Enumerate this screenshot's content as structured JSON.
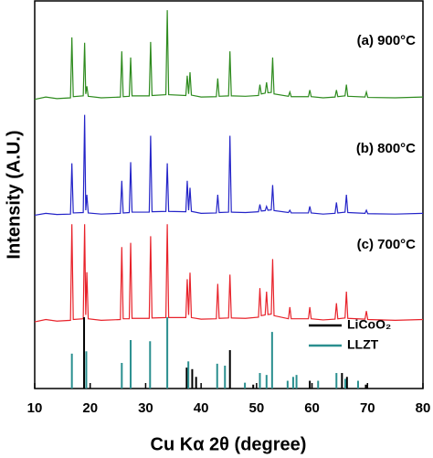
{
  "chart_data": {
    "type": "line",
    "xlabel": "Cu Kα 2θ (degree)",
    "ylabel": "Intensity (A.U.)",
    "xlim": [
      10,
      80
    ],
    "xticks": [
      10,
      20,
      30,
      40,
      50,
      60,
      70,
      80
    ],
    "ylim": [
      0,
      100
    ],
    "x": [
      10,
      12,
      14,
      16.45,
      16.7,
      16.95,
      18.75,
      19.0,
      19.2,
      19.4,
      19.65,
      22,
      25.45,
      25.7,
      25.95,
      27.05,
      27.3,
      27.55,
      30.65,
      30.9,
      31.15,
      33.65,
      33.9,
      34.15,
      37.25,
      37.5,
      37.75,
      38.0,
      38.25,
      40,
      42.75,
      43.0,
      43.25,
      44.95,
      45.2,
      45.45,
      48,
      50.35,
      50.6,
      50.85,
      51.55,
      51.8,
      52.05,
      52.65,
      52.9,
      53.15,
      55.75,
      56.0,
      56.25,
      59.35,
      59.6,
      59.85,
      62,
      64.15,
      64.4,
      64.65,
      65.95,
      66.2,
      66.45,
      69.55,
      69.8,
      70.05,
      75,
      80
    ],
    "series": [
      {
        "name": "(a) 900°C",
        "color": "#2e8b1e",
        "values": [
          74.6,
          75.2,
          74.8,
          75,
          90.6,
          75.3,
          75.5,
          89.2,
          76,
          78,
          75.4,
          75,
          75.2,
          87,
          75.3,
          75.4,
          85.4,
          75.5,
          75.5,
          89.4,
          75.6,
          75.8,
          97.6,
          75.8,
          75.6,
          80.7,
          76,
          81.6,
          75.7,
          75.2,
          75.3,
          80,
          75.4,
          75.5,
          87,
          75.5,
          75.4,
          75.6,
          78.4,
          76,
          76.2,
          79,
          76.3,
          76.4,
          85.4,
          76,
          75.4,
          76.5,
          75.3,
          75.3,
          77,
          75.3,
          75,
          75.2,
          77,
          75.3,
          75.5,
          78.4,
          75.4,
          75.2,
          76.5,
          75.1,
          75,
          75.2
        ]
      },
      {
        "name": "(b) 800°C",
        "color": "#2424c8",
        "values": [
          44.7,
          45.2,
          44.9,
          45,
          58.1,
          45.3,
          45.4,
          70.6,
          46,
          50,
          45.3,
          45,
          45.2,
          53.6,
          45.3,
          45.4,
          58.4,
          45.5,
          45.5,
          65.2,
          45.6,
          45.7,
          58.1,
          45.7,
          45.6,
          53.6,
          46,
          51.8,
          45.7,
          45.2,
          45.3,
          50,
          45.4,
          45.5,
          65.2,
          45.5,
          45.4,
          45.6,
          47.5,
          45.8,
          45.9,
          47,
          46,
          46.1,
          52.5,
          45.9,
          45.4,
          46,
          45.3,
          45.3,
          47,
          45.3,
          45,
          45.2,
          48,
          45.3,
          45.5,
          50,
          45.4,
          45.2,
          46,
          45.1,
          45,
          45.2
        ]
      },
      {
        "name": "(c) 700°C",
        "color": "#e8222a",
        "values": [
          17.2,
          17.8,
          17.4,
          17.6,
          42.4,
          17.8,
          18,
          42.4,
          19,
          30,
          18,
          17.6,
          17.8,
          36.5,
          18,
          18,
          37.6,
          18.1,
          18.1,
          39.3,
          18.2,
          18.3,
          42.4,
          18.3,
          18.3,
          28.2,
          19,
          29.9,
          18.3,
          17.9,
          18,
          27,
          18.1,
          18.2,
          29.4,
          18.2,
          18.1,
          18.4,
          25.9,
          18.8,
          19,
          25,
          19.1,
          19.2,
          33.4,
          18.8,
          18,
          21,
          18,
          18,
          21,
          18,
          17.7,
          17.9,
          22,
          18,
          18.2,
          25,
          18.1,
          17.9,
          20,
          17.8,
          17.6,
          17.8
        ]
      }
    ],
    "references": [
      {
        "name": "LiCoO₂",
        "color": "#000000",
        "x": [
          18.9,
          37.4,
          38.4,
          39.1,
          45.2,
          49.4,
          59.6,
          65.4,
          66.3,
          69.7
        ],
        "values": [
          18.4,
          5.4,
          5,
          3,
          9.9,
          1,
          2,
          4,
          3,
          1
        ]
      },
      {
        "name": "LLZT",
        "color": "#2a8f8f",
        "x": [
          16.7,
          19.3,
          25.7,
          27.3,
          30.8,
          33.9,
          37.7,
          42.9,
          44.3,
          47.9,
          50.6,
          51.8,
          52.8,
          55.6,
          56.6,
          57.2,
          61.1,
          64.4,
          66.0,
          68.3
        ],
        "values": [
          9,
          9.6,
          6.6,
          12.5,
          12.2,
          18.4,
          7,
          6.4,
          5.9,
          1.5,
          4,
          3.5,
          14.6,
          2,
          3,
          3.5,
          2,
          4,
          2.5,
          2
        ]
      }
    ],
    "legend": "upper right"
  }
}
